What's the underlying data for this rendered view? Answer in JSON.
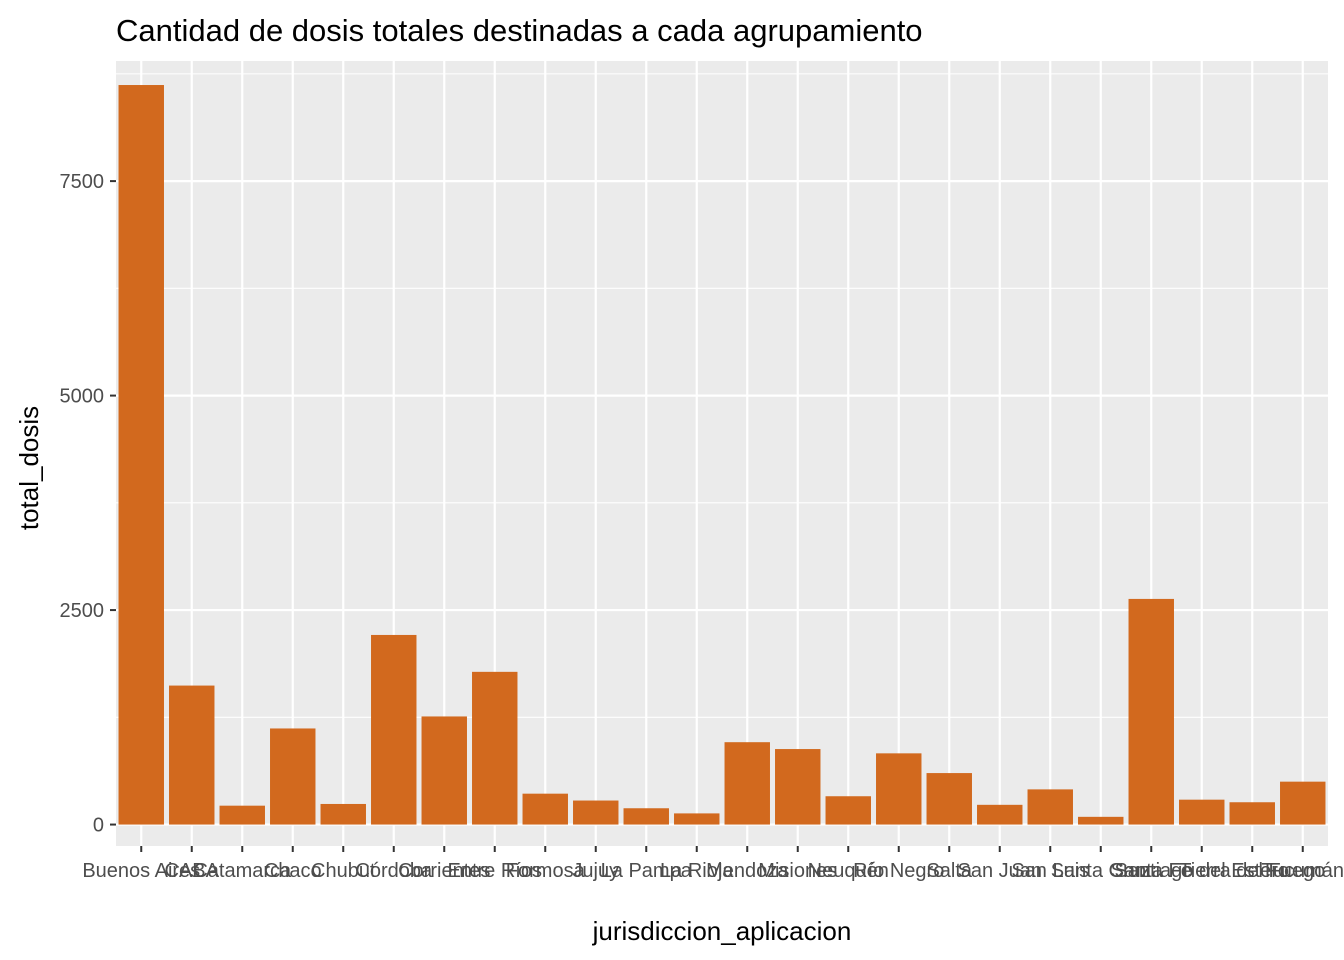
{
  "chart_data": {
    "type": "bar",
    "title": "Cantidad de dosis totales destinadas a cada agrupamiento",
    "xlabel": "jurisdiccion_aplicacion",
    "ylabel": "total_dosis",
    "categories": [
      "Buenos Aires",
      "CABA",
      "Catamarca",
      "Chaco",
      "Chubut",
      "Córdoba",
      "Corrientes",
      "Entre Ríos",
      "Formosa",
      "Jujuy",
      "La Pampa",
      "La Rioja",
      "Mendoza",
      "Misiones",
      "Neuquén",
      "Río Negro",
      "Salta",
      "San Juan",
      "San Luis",
      "Santa Cruz",
      "Santa Fe",
      "Santiago del Estero",
      "Tierra del Fuego",
      "Tucumán"
    ],
    "values": [
      8620,
      1620,
      220,
      1120,
      240,
      2210,
      1260,
      1780,
      360,
      280,
      190,
      130,
      960,
      880,
      330,
      830,
      600,
      230,
      410,
      90,
      2630,
      290,
      260,
      500
    ],
    "ylim": [
      -250,
      8900
    ],
    "yticks": [
      0,
      2500,
      5000,
      7500
    ],
    "bar_color": "#D2691E",
    "panel_background": "#EBEBEB",
    "grid_color": "#FFFFFF",
    "grid": true,
    "legend": "none"
  }
}
